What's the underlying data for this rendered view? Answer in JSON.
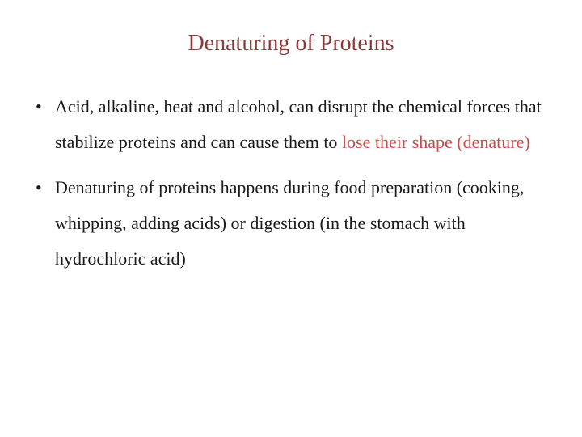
{
  "slide": {
    "title": "Denaturing of Proteins",
    "title_color": "#8b3a3a",
    "title_fontsize": 28,
    "body_fontsize": 22,
    "body_color": "#1a1a1a",
    "highlight_color": "#c94a4a",
    "background_color": "#ffffff",
    "line_height": 2.0,
    "bullets": [
      {
        "pre": "Acid, alkaline, heat and alcohol, can disrupt the chemical forces that stabilize proteins and can cause them to ",
        "highlight": "lose their shape (denature)",
        "post": ""
      },
      {
        "pre": "Denaturing of proteins happens during food preparation (cooking, whipping, adding acids) or digestion (in the stomach with hydrochloric acid)",
        "highlight": "",
        "post": ""
      }
    ]
  }
}
